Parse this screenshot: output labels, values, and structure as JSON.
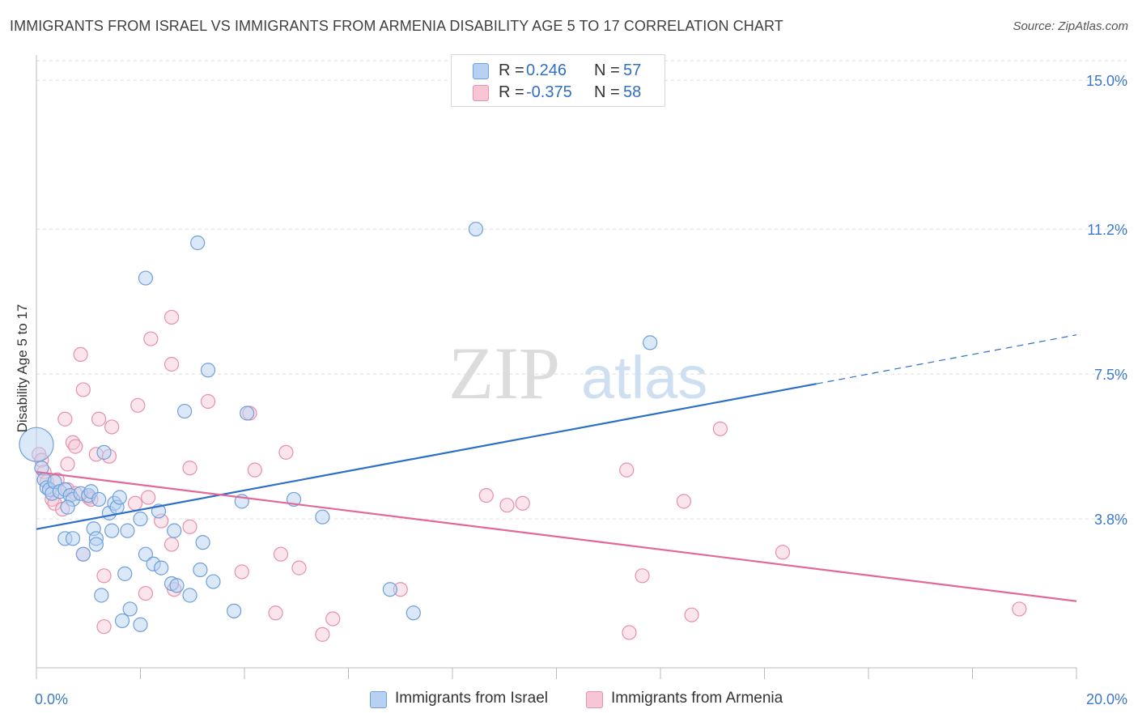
{
  "title": "IMMIGRANTS FROM ISRAEL VS IMMIGRANTS FROM ARMENIA DISABILITY AGE 5 TO 17 CORRELATION CHART",
  "source": "Source: ZipAtlas.com",
  "watermark": {
    "zip": "ZIP",
    "atlas": "atlas"
  },
  "legend": {
    "rows": [
      {
        "r_label": "R =",
        "r_value": "0.246",
        "n_label": "N =",
        "n_value": "57"
      },
      {
        "r_label": "R =",
        "r_value": "-0.375",
        "n_label": "N =",
        "n_value": "58"
      }
    ]
  },
  "bottom_legend": [
    "Immigrants from Israel",
    "Immigrants from Armenia"
  ],
  "colors": {
    "israel_fill": "#b8d1f2",
    "israel_stroke": "#6f9fd9",
    "israel_line": "#2c6fc6",
    "armenia_fill": "#f7c6d5",
    "armenia_stroke": "#e68fae",
    "armenia_line": "#e0699a",
    "tick_label": "#3a78c9",
    "grid": "#dddddd"
  },
  "chart_data": {
    "type": "scatter",
    "xlabel": "",
    "ylabel": "Disability Age 5 to 17",
    "xlim": [
      0,
      20
    ],
    "ylim": [
      0,
      15.5
    ],
    "x_tick_labels": [
      "0.0%",
      "20.0%"
    ],
    "y_ticks": [
      {
        "value": 3.8,
        "label": "3.8%"
      },
      {
        "value": 7.5,
        "label": "7.5%"
      },
      {
        "value": 11.2,
        "label": "11.2%"
      },
      {
        "value": 15.0,
        "label": "15.0%"
      }
    ],
    "grid": "horizontal dashed",
    "series": [
      {
        "name": "Immigrants from Israel",
        "trend": {
          "x1": 0,
          "y1": 3.54,
          "x2": 15,
          "y2": 7.25,
          "dash_to_x": 20,
          "dash_to_y": 8.5
        },
        "points": [
          {
            "x": 0.0,
            "y": 5.7,
            "big": true
          },
          {
            "x": 0.1,
            "y": 5.1
          },
          {
            "x": 0.15,
            "y": 4.8
          },
          {
            "x": 0.2,
            "y": 4.6
          },
          {
            "x": 0.25,
            "y": 4.55
          },
          {
            "x": 0.3,
            "y": 4.45
          },
          {
            "x": 0.35,
            "y": 4.75
          },
          {
            "x": 0.45,
            "y": 4.5
          },
          {
            "x": 0.55,
            "y": 4.55
          },
          {
            "x": 0.65,
            "y": 4.4
          },
          {
            "x": 0.7,
            "y": 4.3
          },
          {
            "x": 0.6,
            "y": 4.1
          },
          {
            "x": 0.85,
            "y": 4.45
          },
          {
            "x": 1.0,
            "y": 4.4
          },
          {
            "x": 1.05,
            "y": 4.5
          },
          {
            "x": 1.2,
            "y": 4.3
          },
          {
            "x": 1.3,
            "y": 5.5
          },
          {
            "x": 1.4,
            "y": 3.95
          },
          {
            "x": 1.5,
            "y": 4.2
          },
          {
            "x": 1.55,
            "y": 4.1
          },
          {
            "x": 1.6,
            "y": 4.35
          },
          {
            "x": 1.75,
            "y": 3.5
          },
          {
            "x": 2.0,
            "y": 3.8
          },
          {
            "x": 2.35,
            "y": 4.0
          },
          {
            "x": 1.1,
            "y": 3.55
          },
          {
            "x": 1.45,
            "y": 3.5
          },
          {
            "x": 0.55,
            "y": 3.3
          },
          {
            "x": 0.7,
            "y": 3.3
          },
          {
            "x": 1.15,
            "y": 3.3
          },
          {
            "x": 1.15,
            "y": 3.15
          },
          {
            "x": 0.9,
            "y": 2.9
          },
          {
            "x": 2.1,
            "y": 2.9
          },
          {
            "x": 2.25,
            "y": 2.65
          },
          {
            "x": 2.4,
            "y": 2.55
          },
          {
            "x": 1.7,
            "y": 2.4
          },
          {
            "x": 2.6,
            "y": 2.15
          },
          {
            "x": 2.7,
            "y": 2.1
          },
          {
            "x": 2.95,
            "y": 1.85
          },
          {
            "x": 1.25,
            "y": 1.85
          },
          {
            "x": 1.8,
            "y": 1.5
          },
          {
            "x": 1.65,
            "y": 1.2
          },
          {
            "x": 2.0,
            "y": 1.1
          },
          {
            "x": 3.15,
            "y": 2.5
          },
          {
            "x": 3.4,
            "y": 2.2
          },
          {
            "x": 3.2,
            "y": 3.2
          },
          {
            "x": 2.65,
            "y": 3.5
          },
          {
            "x": 3.8,
            "y": 1.45
          },
          {
            "x": 3.95,
            "y": 4.25
          },
          {
            "x": 4.05,
            "y": 6.5
          },
          {
            "x": 2.85,
            "y": 6.55
          },
          {
            "x": 3.3,
            "y": 7.6
          },
          {
            "x": 3.1,
            "y": 10.85
          },
          {
            "x": 2.1,
            "y": 9.95
          },
          {
            "x": 4.95,
            "y": 4.3
          },
          {
            "x": 5.5,
            "y": 3.85
          },
          {
            "x": 6.8,
            "y": 2.0
          },
          {
            "x": 7.25,
            "y": 1.4
          },
          {
            "x": 8.45,
            "y": 11.2
          },
          {
            "x": 11.8,
            "y": 8.3
          }
        ]
      },
      {
        "name": "Immigrants from Armenia",
        "trend": {
          "x1": 0,
          "y1": 5.0,
          "x2": 20,
          "y2": 1.7
        },
        "points": [
          {
            "x": 0.05,
            "y": 5.45
          },
          {
            "x": 0.1,
            "y": 5.3
          },
          {
            "x": 0.15,
            "y": 5.0
          },
          {
            "x": 0.2,
            "y": 4.75
          },
          {
            "x": 0.3,
            "y": 4.3
          },
          {
            "x": 0.4,
            "y": 4.8
          },
          {
            "x": 0.35,
            "y": 4.2
          },
          {
            "x": 0.6,
            "y": 4.55
          },
          {
            "x": 0.5,
            "y": 4.05
          },
          {
            "x": 0.55,
            "y": 6.35
          },
          {
            "x": 0.6,
            "y": 5.2
          },
          {
            "x": 0.7,
            "y": 5.75
          },
          {
            "x": 0.75,
            "y": 5.65
          },
          {
            "x": 0.75,
            "y": 4.45
          },
          {
            "x": 0.85,
            "y": 8.0
          },
          {
            "x": 0.9,
            "y": 7.1
          },
          {
            "x": 1.0,
            "y": 4.35
          },
          {
            "x": 1.05,
            "y": 4.3
          },
          {
            "x": 1.2,
            "y": 6.35
          },
          {
            "x": 1.15,
            "y": 5.45
          },
          {
            "x": 1.4,
            "y": 5.4
          },
          {
            "x": 1.45,
            "y": 6.15
          },
          {
            "x": 0.9,
            "y": 2.9
          },
          {
            "x": 1.3,
            "y": 2.35
          },
          {
            "x": 1.3,
            "y": 1.05
          },
          {
            "x": 1.9,
            "y": 4.2
          },
          {
            "x": 2.15,
            "y": 4.35
          },
          {
            "x": 1.95,
            "y": 6.7
          },
          {
            "x": 2.2,
            "y": 8.4
          },
          {
            "x": 2.6,
            "y": 8.95
          },
          {
            "x": 2.6,
            "y": 7.75
          },
          {
            "x": 2.4,
            "y": 3.75
          },
          {
            "x": 2.6,
            "y": 3.15
          },
          {
            "x": 2.65,
            "y": 2.0
          },
          {
            "x": 2.1,
            "y": 1.9
          },
          {
            "x": 2.95,
            "y": 5.1
          },
          {
            "x": 2.95,
            "y": 3.6
          },
          {
            "x": 3.3,
            "y": 6.8
          },
          {
            "x": 3.95,
            "y": 2.45
          },
          {
            "x": 4.1,
            "y": 6.5
          },
          {
            "x": 4.2,
            "y": 5.05
          },
          {
            "x": 4.6,
            "y": 1.4
          },
          {
            "x": 4.7,
            "y": 2.9
          },
          {
            "x": 4.8,
            "y": 5.5
          },
          {
            "x": 5.05,
            "y": 2.55
          },
          {
            "x": 5.5,
            "y": 0.85
          },
          {
            "x": 5.7,
            "y": 1.25
          },
          {
            "x": 7.0,
            "y": 2.0
          },
          {
            "x": 8.65,
            "y": 4.4
          },
          {
            "x": 9.05,
            "y": 4.15
          },
          {
            "x": 9.35,
            "y": 4.2
          },
          {
            "x": 11.35,
            "y": 5.05
          },
          {
            "x": 11.65,
            "y": 2.35
          },
          {
            "x": 11.4,
            "y": 0.9
          },
          {
            "x": 12.45,
            "y": 4.25
          },
          {
            "x": 12.6,
            "y": 1.35
          },
          {
            "x": 13.15,
            "y": 6.1
          },
          {
            "x": 14.35,
            "y": 2.95
          },
          {
            "x": 18.9,
            "y": 1.5
          }
        ]
      }
    ]
  }
}
